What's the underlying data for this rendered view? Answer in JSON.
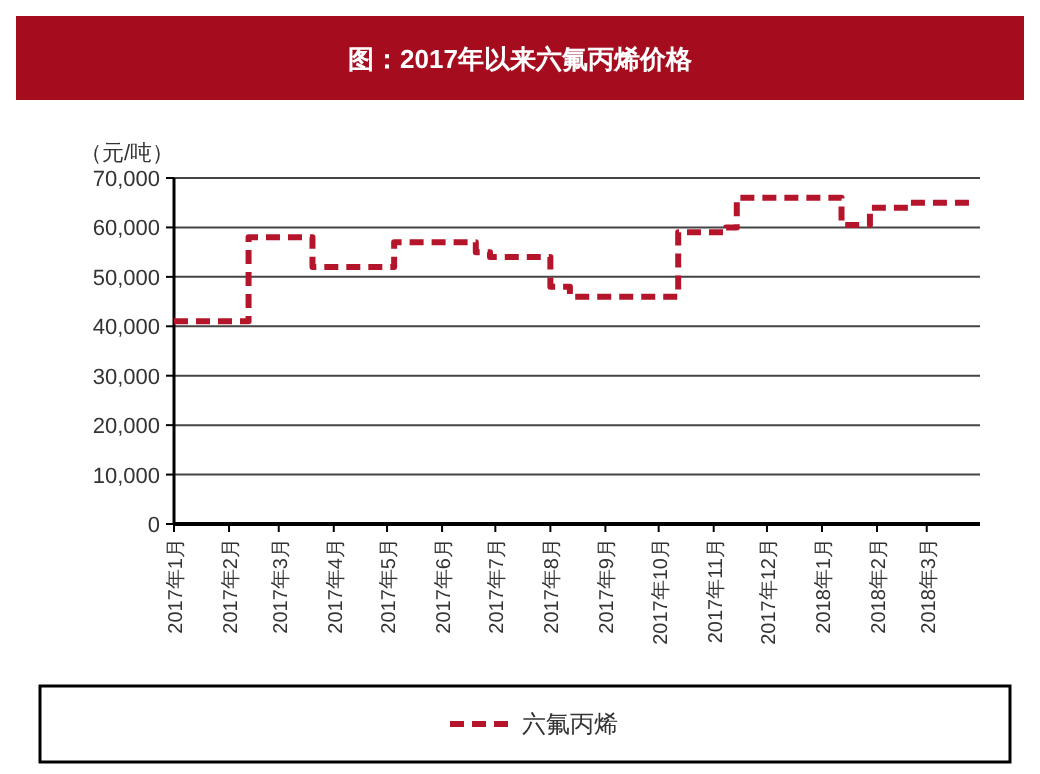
{
  "chart_data": {
    "type": "step",
    "title": "图：2017年以来六氟丙烯价格",
    "ylabel": "（元/吨）",
    "x": [
      "2017-01-01",
      "2017-02-12",
      "2017-03-20",
      "2017-05-05",
      "2017-06-20",
      "2017-06-28",
      "2017-08-01",
      "2017-08-12",
      "2017-10-12",
      "2017-11-08",
      "2017-11-14",
      "2018-01-12",
      "2018-01-28",
      "2018-02-20",
      "2018-03-25"
    ],
    "series": [
      {
        "name": "六氟丙烯",
        "color": "#b5152b",
        "values": [
          41000,
          58000,
          52000,
          57000,
          55000,
          54000,
          48000,
          46000,
          59000,
          60000,
          66000,
          60500,
          64000,
          65000,
          65000
        ]
      }
    ],
    "xlim": [
      "2017-01-01",
      "2018-03-31"
    ],
    "xticks": [
      {
        "value": "2017-01-01",
        "label": "2017年1月"
      },
      {
        "value": "2017-02-01",
        "label": "2017年2月"
      },
      {
        "value": "2017-03-01",
        "label": "2017年3月"
      },
      {
        "value": "2017-04-01",
        "label": "2017年4月"
      },
      {
        "value": "2017-05-01",
        "label": "2017年5月"
      },
      {
        "value": "2017-06-01",
        "label": "2017年6月"
      },
      {
        "value": "2017-07-01",
        "label": "2017年7月"
      },
      {
        "value": "2017-08-01",
        "label": "2017年8月"
      },
      {
        "value": "2017-09-01",
        "label": "2017年9月"
      },
      {
        "value": "2017-10-01",
        "label": "2017年10月"
      },
      {
        "value": "2017-11-01",
        "label": "2017年11月"
      },
      {
        "value": "2017-12-01",
        "label": "2017年12月"
      },
      {
        "value": "2018-01-01",
        "label": "2018年1月"
      },
      {
        "value": "2018-02-01",
        "label": "2018年2月"
      },
      {
        "value": "2018-03-01",
        "label": "2018年3月"
      }
    ],
    "ylim": [
      0,
      70000
    ],
    "yticks": [
      0,
      {
        "value": 10000,
        "label": "10,000"
      },
      {
        "value": 20000,
        "label": "20,000"
      },
      {
        "value": 30000,
        "label": "30,000"
      },
      {
        "value": 40000,
        "label": "40,000"
      },
      {
        "value": 50000,
        "label": "50,000"
      },
      {
        "value": 60000,
        "label": "60,000"
      },
      {
        "value": 70000,
        "label": "70,000"
      }
    ],
    "grid": "y",
    "legend": "bottom",
    "line_style": "dashed"
  }
}
